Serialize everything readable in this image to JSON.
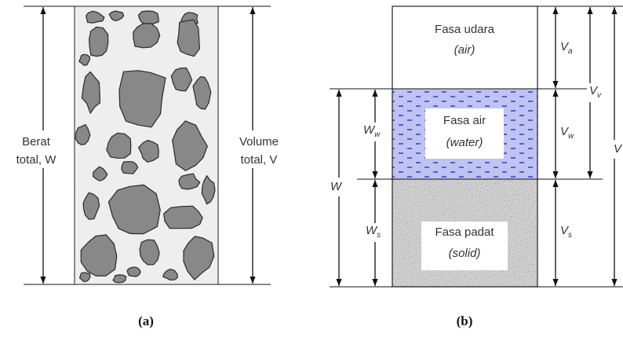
{
  "panel_a": {
    "weight_label": [
      "Berat",
      "total, W"
    ],
    "volume_label": [
      "Volume",
      "total, V"
    ],
    "caption": "(a)"
  },
  "panel_b": {
    "phases": [
      {
        "name": "Fasa udara",
        "english": "(air)"
      },
      {
        "name": "Fasa air",
        "english": "(water)"
      },
      {
        "name": "Fasa padat",
        "english": "(solid)"
      }
    ],
    "right_labels": [
      {
        "symbol": "V",
        "sub": "a"
      },
      {
        "symbol": "V",
        "sub": "w"
      },
      {
        "symbol": "V",
        "sub": "s"
      },
      {
        "symbol": "V",
        "sub": "v"
      },
      {
        "symbol": "V"
      }
    ],
    "left_labels": [
      {
        "symbol": "W",
        "sub": "w"
      },
      {
        "symbol": "W",
        "sub": "s"
      },
      {
        "symbol": "W"
      }
    ],
    "caption": "(b)"
  }
}
